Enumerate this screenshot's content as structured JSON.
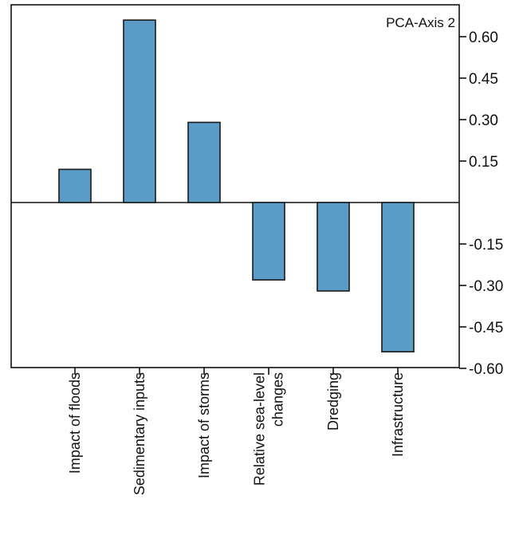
{
  "chart_data": {
    "type": "bar",
    "title": "PCA-Axis 2",
    "xlabel": "",
    "ylabel": "",
    "categories": [
      [
        "Impact of floods"
      ],
      [
        "Sedimentary inputs"
      ],
      [
        "Impact of storms"
      ],
      [
        "Relative sea-level",
        "changes"
      ],
      [
        "Dredging"
      ],
      [
        "Infrastructure"
      ]
    ],
    "values": [
      0.12,
      0.66,
      0.29,
      -0.28,
      -0.32,
      -0.54
    ],
    "ylim": [
      -0.62,
      0.72
    ],
    "yticks": [
      0.6,
      0.45,
      0.3,
      0.15,
      -0.15,
      -0.3,
      -0.45,
      -0.6
    ],
    "ytick_labels": [
      "0.60",
      "0.45",
      "0.30",
      "0.15",
      "-0.15",
      "-0.30",
      "-0.45",
      "-0.60"
    ],
    "y_axis_side": "right",
    "grid": false,
    "legend": "none",
    "colors": {
      "bar_fill": "#5b9bc8",
      "bar_stroke": "#1a1a1a",
      "axis": "#111111"
    }
  }
}
